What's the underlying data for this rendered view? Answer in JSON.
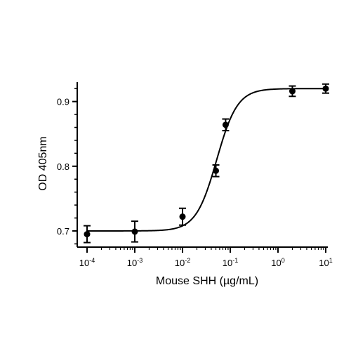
{
  "chart_data": {
    "type": "scatter",
    "title": "",
    "xlabel": "Mouse SHH (µg/mL)",
    "ylabel": "OD 405nm",
    "xscale": "log",
    "xlim": [
      0.0001,
      10
    ],
    "ylim": [
      0.675,
      0.93
    ],
    "x_ticks": [
      {
        "value": 0.0001,
        "base": "10",
        "exp": "-4"
      },
      {
        "value": 0.001,
        "base": "10",
        "exp": "-3"
      },
      {
        "value": 0.01,
        "base": "10",
        "exp": "-2"
      },
      {
        "value": 0.1,
        "base": "10",
        "exp": "-1"
      },
      {
        "value": 1,
        "base": "10",
        "exp": "0"
      },
      {
        "value": 10,
        "base": "10",
        "exp": "1"
      }
    ],
    "y_ticks": [
      {
        "value": 0.7,
        "label": "0.7"
      },
      {
        "value": 0.8,
        "label": "0.8"
      },
      {
        "value": 0.9,
        "label": "0.9"
      }
    ],
    "grid": false,
    "legend": "none",
    "colors": {
      "points": "#000000",
      "curve": "#000000",
      "axes": "#000000"
    },
    "series": [
      {
        "points": [
          {
            "x": 0.0001,
            "y": 0.695,
            "err": 0.013
          },
          {
            "x": 0.001,
            "y": 0.699,
            "err": 0.016
          },
          {
            "x": 0.01,
            "y": 0.722,
            "err": 0.013
          },
          {
            "x": 0.05,
            "y": 0.793,
            "err": 0.009
          },
          {
            "x": 0.08,
            "y": 0.864,
            "err": 0.009
          },
          {
            "x": 2,
            "y": 0.916,
            "err": 0.008
          },
          {
            "x": 10,
            "y": 0.92,
            "err": 0.007
          }
        ],
        "fit": {
          "model": "4PL",
          "bottom": 0.7,
          "top": 0.92,
          "ec50": 0.052,
          "hill": 2.0
        }
      }
    ]
  }
}
